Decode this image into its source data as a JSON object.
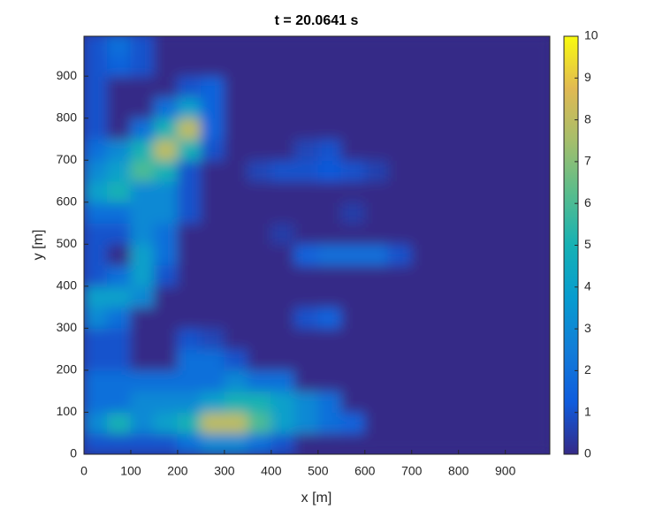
{
  "chart_data": {
    "type": "contourf",
    "title": "t = 20.0641 s",
    "x_label": "x [m]",
    "y_label": "y [m]",
    "x": [
      25,
      75,
      125,
      175,
      225,
      275,
      325,
      375,
      425,
      475,
      525,
      575,
      625,
      675,
      725,
      775,
      825,
      875,
      925,
      975
    ],
    "y": [
      25,
      75,
      125,
      175,
      225,
      275,
      325,
      375,
      425,
      475,
      525,
      575,
      625,
      675,
      725,
      775,
      825,
      875,
      925,
      975
    ],
    "z": [
      [
        1,
        1,
        1,
        1,
        2,
        3,
        3,
        2,
        1,
        0,
        0,
        0,
        0,
        0,
        0,
        0,
        0,
        0,
        0,
        0
      ],
      [
        3,
        5,
        3,
        4,
        5,
        8,
        8,
        6,
        4,
        3,
        2,
        1.5,
        0,
        0,
        0,
        0,
        0,
        0,
        0,
        0
      ],
      [
        2,
        2,
        3,
        3,
        3,
        4,
        5,
        5,
        4,
        3,
        2,
        0,
        0,
        0,
        0,
        0,
        0,
        0,
        0,
        0
      ],
      [
        2,
        2,
        2,
        2,
        2,
        2,
        3,
        2,
        2,
        0,
        0,
        0,
        0,
        0,
        0,
        0,
        0,
        0,
        0,
        0
      ],
      [
        1,
        1,
        0,
        0,
        2,
        2,
        1,
        0,
        0,
        0,
        0,
        0,
        0,
        0,
        0,
        0,
        0,
        0,
        0,
        0
      ],
      [
        1,
        1,
        0,
        0,
        1,
        0.7,
        0,
        0,
        0,
        0,
        0,
        0,
        0,
        0,
        0,
        0,
        0,
        0,
        0,
        0
      ],
      [
        3,
        2,
        0,
        0,
        0,
        0,
        0,
        0,
        0,
        1,
        1.5,
        0,
        0,
        0,
        0,
        0,
        0,
        0,
        0,
        0
      ],
      [
        4,
        4,
        3,
        0,
        0,
        0,
        0,
        0,
        0,
        0,
        0,
        0,
        0,
        0,
        0,
        0,
        0,
        0,
        0,
        0
      ],
      [
        1,
        2,
        4,
        1,
        0,
        0,
        0,
        0,
        0,
        0,
        0,
        0,
        0,
        0,
        0,
        0,
        0,
        0,
        0,
        0
      ],
      [
        1,
        0,
        4,
        2,
        0,
        0,
        0,
        0,
        0,
        1.5,
        2,
        2,
        2,
        1,
        0,
        0,
        0,
        0,
        0,
        0
      ],
      [
        1,
        1,
        3,
        2,
        0,
        0,
        0,
        0,
        0.5,
        0,
        0,
        0,
        0,
        0,
        0,
        0,
        0,
        0,
        0,
        0
      ],
      [
        2,
        2,
        3,
        3,
        1,
        0,
        0,
        0,
        0,
        0,
        0,
        0.5,
        0,
        0,
        0,
        0,
        0,
        0,
        0,
        0
      ],
      [
        4,
        5,
        3,
        3,
        1,
        0,
        0,
        0,
        0,
        0,
        0,
        0,
        0,
        0,
        0,
        0,
        0,
        0,
        0,
        0
      ],
      [
        3,
        4,
        6,
        5,
        1,
        0,
        0,
        0.7,
        1,
        1,
        1.2,
        1,
        0.6,
        0,
        0,
        0,
        0,
        0,
        0,
        0
      ],
      [
        2,
        3,
        5,
        8,
        5,
        1,
        0,
        0,
        0,
        0.7,
        1,
        0,
        0,
        0,
        0,
        0,
        0,
        0,
        0,
        0
      ],
      [
        1,
        0,
        2,
        5,
        8,
        1.5,
        0,
        0,
        0,
        0,
        0,
        0,
        0,
        0,
        0,
        0,
        0,
        0,
        0,
        0
      ],
      [
        1,
        0,
        0,
        2,
        4,
        1.5,
        0,
        0,
        0,
        0,
        0,
        0,
        0,
        0,
        0,
        0,
        0,
        0,
        0,
        0
      ],
      [
        1,
        0,
        0,
        0,
        1,
        1.5,
        0,
        0,
        0,
        0,
        0,
        0,
        0,
        0,
        0,
        0,
        0,
        0,
        0,
        0
      ],
      [
        1,
        1.5,
        1,
        0,
        0,
        0,
        0,
        0,
        0,
        0,
        0,
        0,
        0,
        0,
        0,
        0,
        0,
        0,
        0,
        0
      ],
      [
        1,
        2,
        1,
        0,
        0,
        0,
        0,
        0,
        0,
        0,
        0,
        0,
        0,
        0,
        0,
        0,
        0,
        0,
        0,
        0
      ]
    ],
    "xlim": [
      0,
      995
    ],
    "ylim": [
      0,
      995
    ],
    "xticks": [
      0,
      100,
      200,
      300,
      400,
      500,
      600,
      700,
      800,
      900
    ],
    "yticks": [
      0,
      100,
      200,
      300,
      400,
      500,
      600,
      700,
      800,
      900
    ],
    "clim": [
      0,
      10
    ],
    "cticks": [
      0,
      1,
      2,
      3,
      4,
      5,
      6,
      7,
      8,
      9,
      10
    ],
    "colormap": [
      "#352a87",
      "#0f5cdd",
      "#127dd8",
      "#079ccf",
      "#15b1b4",
      "#59bd8c",
      "#a5be6b",
      "#e1b952",
      "#f9fb0e"
    ]
  }
}
